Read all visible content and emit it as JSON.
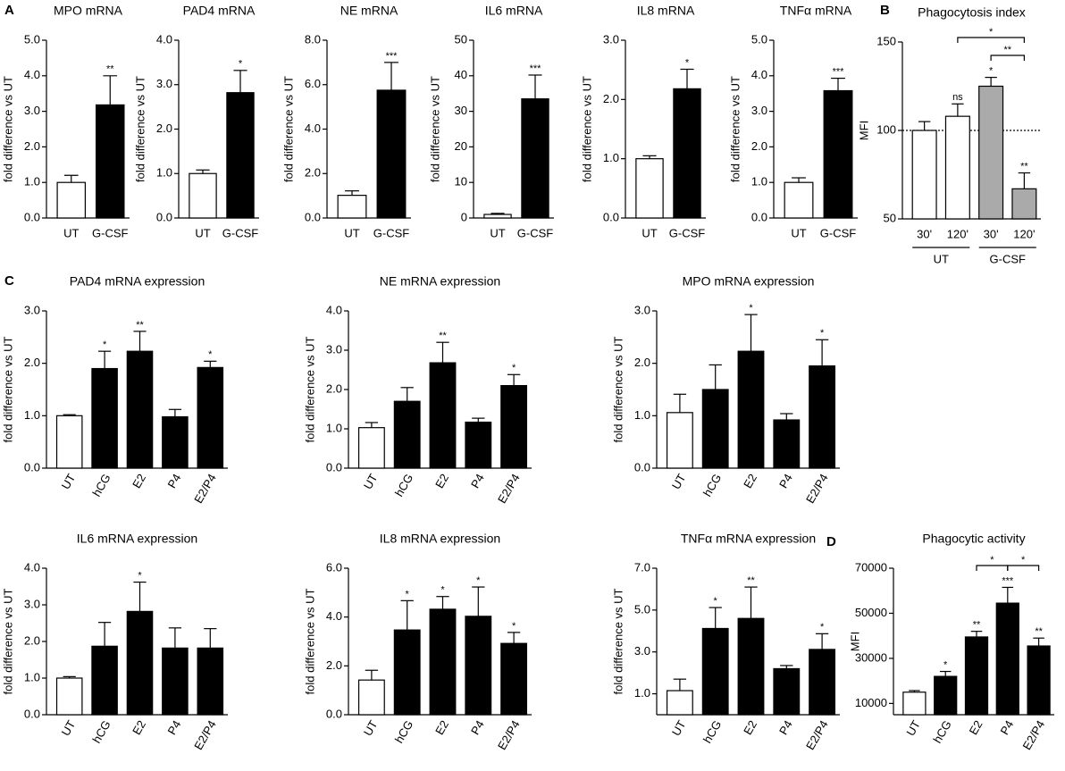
{
  "chart_data": [
    {
      "type": "bar",
      "panel": "A",
      "title": "MPO mRNA",
      "ylabel": "fold difference vs UT",
      "categories": [
        "UT",
        "G-CSF"
      ],
      "values": [
        1.0,
        3.18
      ],
      "errors": [
        0.2,
        0.82
      ],
      "colors": [
        "#ffffff",
        "#000000"
      ],
      "sig": [
        null,
        "**"
      ],
      "ylim": [
        0,
        5
      ],
      "yticks": [
        {
          "value": 0,
          "label": "0.0"
        },
        {
          "value": 1,
          "label": "1.0"
        },
        {
          "value": 2,
          "label": "2.0"
        },
        {
          "value": 3,
          "label": "3.0"
        },
        {
          "value": 4,
          "label": "4.0"
        },
        {
          "value": 5,
          "label": "5.0"
        }
      ]
    },
    {
      "type": "bar",
      "title": "PAD4 mRNA",
      "ylabel": "fold difference vs UT",
      "categories": [
        "UT",
        "G-CSF"
      ],
      "values": [
        1.0,
        2.82
      ],
      "errors": [
        0.08,
        0.5
      ],
      "colors": [
        "#ffffff",
        "#000000"
      ],
      "sig": [
        null,
        "*"
      ],
      "ylim": [
        0,
        4
      ],
      "yticks": [
        {
          "value": 0,
          "label": "0.0"
        },
        {
          "value": 1,
          "label": "1.0"
        },
        {
          "value": 2,
          "label": "2.0"
        },
        {
          "value": 3,
          "label": "3.0"
        },
        {
          "value": 4,
          "label": "4.0"
        }
      ]
    },
    {
      "type": "bar",
      "title": "NE mRNA",
      "ylabel": "fold difference vs UT",
      "categories": [
        "UT",
        "G-CSF"
      ],
      "values": [
        1.02,
        5.75
      ],
      "errors": [
        0.2,
        1.25
      ],
      "colors": [
        "#ffffff",
        "#000000"
      ],
      "sig": [
        null,
        "***"
      ],
      "ylim": [
        0,
        8
      ],
      "yticks": [
        {
          "value": 0,
          "label": "0.0"
        },
        {
          "value": 2,
          "label": "2.0"
        },
        {
          "value": 4,
          "label": "4.0"
        },
        {
          "value": 6,
          "label": "6.0"
        },
        {
          "value": 8,
          "label": "8.0"
        }
      ]
    },
    {
      "type": "bar",
      "title": "IL6 mRNA",
      "ylabel": "fold difference vs UT",
      "categories": [
        "UT",
        "G-CSF"
      ],
      "values": [
        1.0,
        33.5
      ],
      "errors": [
        0.3,
        6.7
      ],
      "colors": [
        "#ffffff",
        "#000000"
      ],
      "sig": [
        null,
        "***"
      ],
      "ylim": [
        0,
        50
      ],
      "yticks": [
        0,
        10,
        20,
        30,
        40,
        50
      ]
    },
    {
      "type": "bar",
      "title": "IL8 mRNA",
      "ylabel": "fold difference vs UT",
      "categories": [
        "UT",
        "G-CSF"
      ],
      "values": [
        1.0,
        2.18
      ],
      "errors": [
        0.05,
        0.33
      ],
      "colors": [
        "#ffffff",
        "#000000"
      ],
      "sig": [
        null,
        "*"
      ],
      "ylim": [
        0,
        3
      ],
      "yticks": [
        {
          "value": 0,
          "label": "0.0"
        },
        {
          "value": 1,
          "label": "1.0"
        },
        {
          "value": 2,
          "label": "2.0"
        },
        {
          "value": 3,
          "label": "3.0"
        }
      ]
    },
    {
      "type": "bar",
      "title": "TNFα mRNA",
      "ylabel": "fold difference vs UT",
      "categories": [
        "UT",
        "G-CSF"
      ],
      "values": [
        1.0,
        3.58
      ],
      "errors": [
        0.13,
        0.35
      ],
      "colors": [
        "#ffffff",
        "#000000"
      ],
      "sig": [
        null,
        "***"
      ],
      "ylim": [
        0,
        5
      ],
      "yticks": [
        {
          "value": 0,
          "label": "0.0"
        },
        {
          "value": 1,
          "label": "1.0"
        },
        {
          "value": 2,
          "label": "2.0"
        },
        {
          "value": 3,
          "label": "3.0"
        },
        {
          "value": 4,
          "label": "4.0"
        },
        {
          "value": 5,
          "label": "5.0"
        }
      ]
    },
    {
      "type": "bar",
      "panel": "B",
      "title": "Phagocytosis index",
      "ylabel": "MFI",
      "categories": [
        "30'",
        "120'",
        "30'",
        "120'"
      ],
      "groups": [
        {
          "label": "UT",
          "from": 0,
          "to": 1
        },
        {
          "label": "G-CSF",
          "from": 2,
          "to": 3
        }
      ],
      "values": [
        100,
        108,
        125,
        67
      ],
      "errors": [
        5,
        7,
        5,
        9
      ],
      "colors": [
        "#ffffff",
        "#ffffff",
        "#aaaaaa",
        "#aaaaaa"
      ],
      "sig": [
        null,
        "ns",
        "*",
        "**"
      ],
      "brackets": [
        {
          "from": 1,
          "to": 3,
          "text": "*"
        },
        {
          "from": 2,
          "to": 3,
          "text": "**"
        }
      ],
      "refline": 100,
      "ylim": [
        50,
        150
      ],
      "yticks": [
        50,
        100,
        150
      ]
    },
    {
      "type": "bar",
      "panel": "C",
      "title": "PAD4 mRNA expression",
      "ylabel": "fold difference vs UT",
      "categories": [
        "UT",
        "hCG",
        "E2",
        "P4",
        "E2/P4"
      ],
      "rotated_labels": true,
      "values": [
        1.0,
        1.9,
        2.23,
        0.98,
        1.92
      ],
      "errors": [
        0.02,
        0.33,
        0.38,
        0.14,
        0.12
      ],
      "colors": [
        "#ffffff",
        "#000000",
        "#000000",
        "#000000",
        "#000000"
      ],
      "sig": [
        null,
        "*",
        "**",
        null,
        "*"
      ],
      "ylim": [
        0,
        3
      ],
      "yticks": [
        {
          "value": 0,
          "label": "0.0"
        },
        {
          "value": 1,
          "label": "1.0"
        },
        {
          "value": 2,
          "label": "2.0"
        },
        {
          "value": 3,
          "label": "3.0"
        }
      ]
    },
    {
      "type": "bar",
      "title": "NE mRNA expression",
      "ylabel": "fold difference vs UT",
      "categories": [
        "UT",
        "hCG",
        "E2",
        "P4",
        "E2/P4"
      ],
      "rotated_labels": true,
      "values": [
        1.03,
        1.7,
        2.68,
        1.17,
        2.1
      ],
      "errors": [
        0.13,
        0.35,
        0.52,
        0.1,
        0.28
      ],
      "colors": [
        "#ffffff",
        "#000000",
        "#000000",
        "#000000",
        "#000000"
      ],
      "sig": [
        null,
        null,
        "**",
        null,
        "*"
      ],
      "ylim": [
        0,
        4
      ],
      "yticks": [
        {
          "value": 0,
          "label": "0.0"
        },
        {
          "value": 1,
          "label": "1.0"
        },
        {
          "value": 2,
          "label": "2.0"
        },
        {
          "value": 3,
          "label": "3.0"
        },
        {
          "value": 4,
          "label": "4.0"
        }
      ]
    },
    {
      "type": "bar",
      "title": "MPO mRNA expression",
      "ylabel": "fold difference vs UT",
      "categories": [
        "UT",
        "hCG",
        "E2",
        "P4",
        "E2/P4"
      ],
      "rotated_labels": true,
      "values": [
        1.06,
        1.5,
        2.23,
        0.92,
        1.95
      ],
      "errors": [
        0.35,
        0.47,
        0.7,
        0.12,
        0.5
      ],
      "colors": [
        "#ffffff",
        "#000000",
        "#000000",
        "#000000",
        "#000000"
      ],
      "sig": [
        null,
        null,
        "*",
        null,
        "*"
      ],
      "ylim": [
        0,
        3
      ],
      "yticks": [
        {
          "value": 0,
          "label": "0.0"
        },
        {
          "value": 1,
          "label": "1.0"
        },
        {
          "value": 2,
          "label": "2.0"
        },
        {
          "value": 3,
          "label": "3.0"
        }
      ]
    },
    {
      "type": "bar",
      "title": "IL6 mRNA expression",
      "ylabel": "fold difference vs UT",
      "categories": [
        "UT",
        "hCG",
        "E2",
        "P4",
        "E2/P4"
      ],
      "rotated_labels": true,
      "values": [
        1.0,
        1.87,
        2.82,
        1.82,
        1.82
      ],
      "errors": [
        0.04,
        0.65,
        0.8,
        0.55,
        0.53
      ],
      "colors": [
        "#ffffff",
        "#000000",
        "#000000",
        "#000000",
        "#000000"
      ],
      "sig": [
        null,
        null,
        "*",
        null,
        null
      ],
      "ylim": [
        0,
        4
      ],
      "yticks": [
        {
          "value": 0,
          "label": "0.0"
        },
        {
          "value": 1,
          "label": "1.0"
        },
        {
          "value": 2,
          "label": "2.0"
        },
        {
          "value": 3,
          "label": "3.0"
        },
        {
          "value": 4,
          "label": "4.0"
        }
      ]
    },
    {
      "type": "bar",
      "title": "IL8 mRNA expression",
      "ylabel": "fold difference vs UT",
      "categories": [
        "UT",
        "hCG",
        "E2",
        "P4",
        "E2/P4"
      ],
      "rotated_labels": true,
      "values": [
        1.42,
        3.47,
        4.32,
        4.03,
        2.92
      ],
      "errors": [
        0.4,
        1.2,
        0.52,
        1.2,
        0.45
      ],
      "colors": [
        "#ffffff",
        "#000000",
        "#000000",
        "#000000",
        "#000000"
      ],
      "sig": [
        null,
        "*",
        "*",
        "*",
        "*"
      ],
      "ylim": [
        0,
        6
      ],
      "yticks": [
        {
          "value": 0,
          "label": "0.0"
        },
        {
          "value": 2,
          "label": "2.0"
        },
        {
          "value": 4,
          "label": "4.0"
        },
        {
          "value": 6,
          "label": "6.0"
        }
      ]
    },
    {
      "type": "bar",
      "title": "TNFα mRNA expression",
      "ylabel": "fold difference vs UT",
      "categories": [
        "UT",
        "hCG",
        "E2",
        "P4",
        "E2/P4"
      ],
      "rotated_labels": true,
      "values": [
        1.15,
        4.12,
        4.6,
        2.2,
        3.12
      ],
      "errors": [
        0.55,
        1.0,
        1.5,
        0.15,
        0.75
      ],
      "colors": [
        "#ffffff",
        "#000000",
        "#000000",
        "#000000",
        "#000000"
      ],
      "sig": [
        null,
        "*",
        "**",
        null,
        "*"
      ],
      "ylim": [
        0,
        7
      ],
      "yticks": [
        {
          "value": 1,
          "label": "1.0"
        },
        {
          "value": 3,
          "label": "3.0"
        },
        {
          "value": 5,
          "label": "5.0"
        },
        {
          "value": 7,
          "label": "7.0"
        }
      ]
    },
    {
      "type": "bar",
      "panel": "D",
      "title": "Phagocytic activity",
      "ylabel": "MFI",
      "categories": [
        "UT",
        "hCG",
        "E2",
        "P4",
        "E2/P4"
      ],
      "rotated_labels": true,
      "values": [
        15000,
        22000,
        39500,
        54500,
        35500
      ],
      "errors": [
        700,
        2200,
        2500,
        7000,
        3500
      ],
      "colors": [
        "#ffffff",
        "#000000",
        "#000000",
        "#000000",
        "#000000"
      ],
      "sig": [
        null,
        "*",
        "**",
        "***",
        "**"
      ],
      "brackets": [
        {
          "from": 2,
          "to": 3,
          "text": "*"
        },
        {
          "from": 3,
          "to": 4,
          "text": "*"
        }
      ],
      "ylim": [
        5000,
        70000
      ],
      "yticks": [
        10000,
        30000,
        50000,
        70000
      ]
    }
  ]
}
